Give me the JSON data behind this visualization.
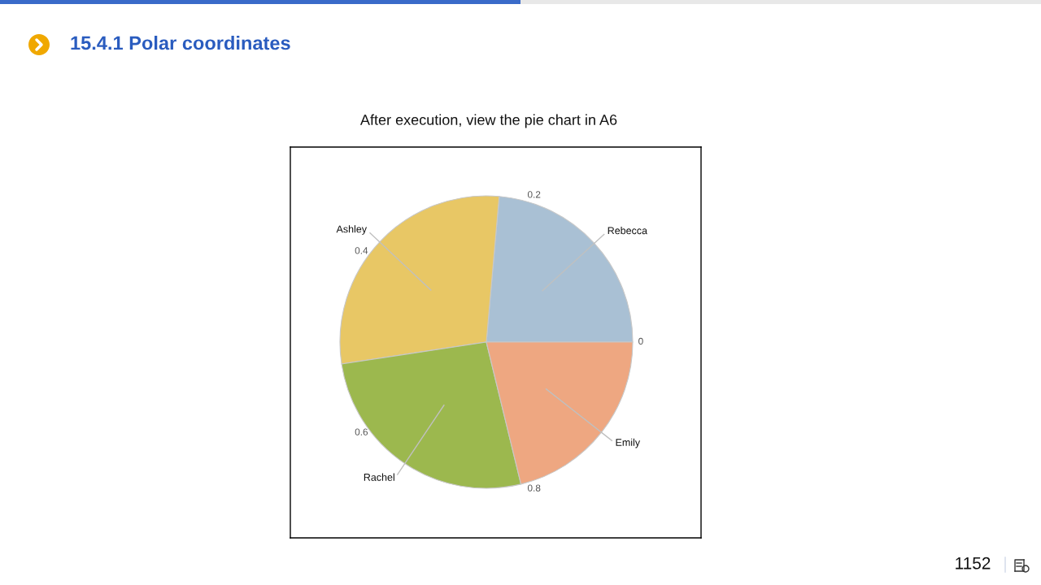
{
  "chart_data": {
    "type": "pie",
    "title": "15.4.1 Polar coordinates",
    "subtitle": "After execution, view the pie chart in A6",
    "categories": [
      "Rebecca",
      "Ashley",
      "Rachel",
      "Emily"
    ],
    "values": [
      0.236,
      0.288,
      0.264,
      0.212
    ],
    "colors": [
      "#a9c0d4",
      "#e8c765",
      "#9cb84e",
      "#eea781"
    ],
    "annotations": [
      "0",
      "0.2",
      "0.4",
      "0.6",
      "0.8",
      "1152"
    ]
  }
}
